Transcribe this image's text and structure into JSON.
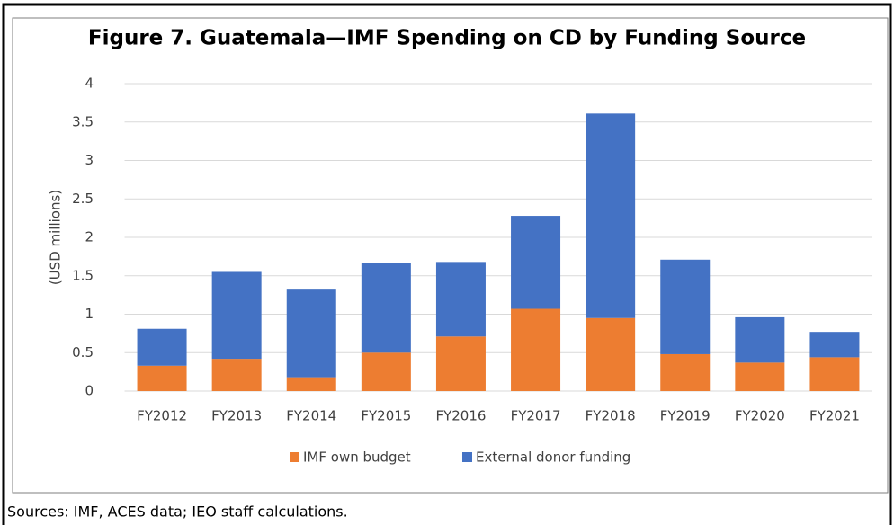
{
  "chart_data": {
    "type": "stacked_bar",
    "title": "Figure 7. Guatemala—IMF Spending on CD by Funding Source",
    "y_label": "(USD millions)",
    "categories": [
      "FY2012",
      "FY2013",
      "FY2014",
      "FY2015",
      "FY2016",
      "FY2017",
      "FY2018",
      "FY2019",
      "FY2020",
      "FY2021"
    ],
    "series": [
      {
        "name": "IMF own budget",
        "color": "#ed7d31",
        "values": [
          0.33,
          0.42,
          0.18,
          0.5,
          0.71,
          1.07,
          0.95,
          0.48,
          0.37,
          0.44
        ]
      },
      {
        "name": "External donor funding",
        "color": "#4472c4",
        "values": [
          0.48,
          1.13,
          1.14,
          1.17,
          0.97,
          1.21,
          2.66,
          1.23,
          0.59,
          0.33
        ]
      }
    ],
    "ylim": [
      0,
      4
    ],
    "yticks": [
      0,
      0.5,
      1,
      1.5,
      2,
      2.5,
      3,
      3.5,
      4
    ],
    "grid": true,
    "legend": "bottom",
    "source": "Sources: IMF, ACES data; IEO staff calculations."
  }
}
